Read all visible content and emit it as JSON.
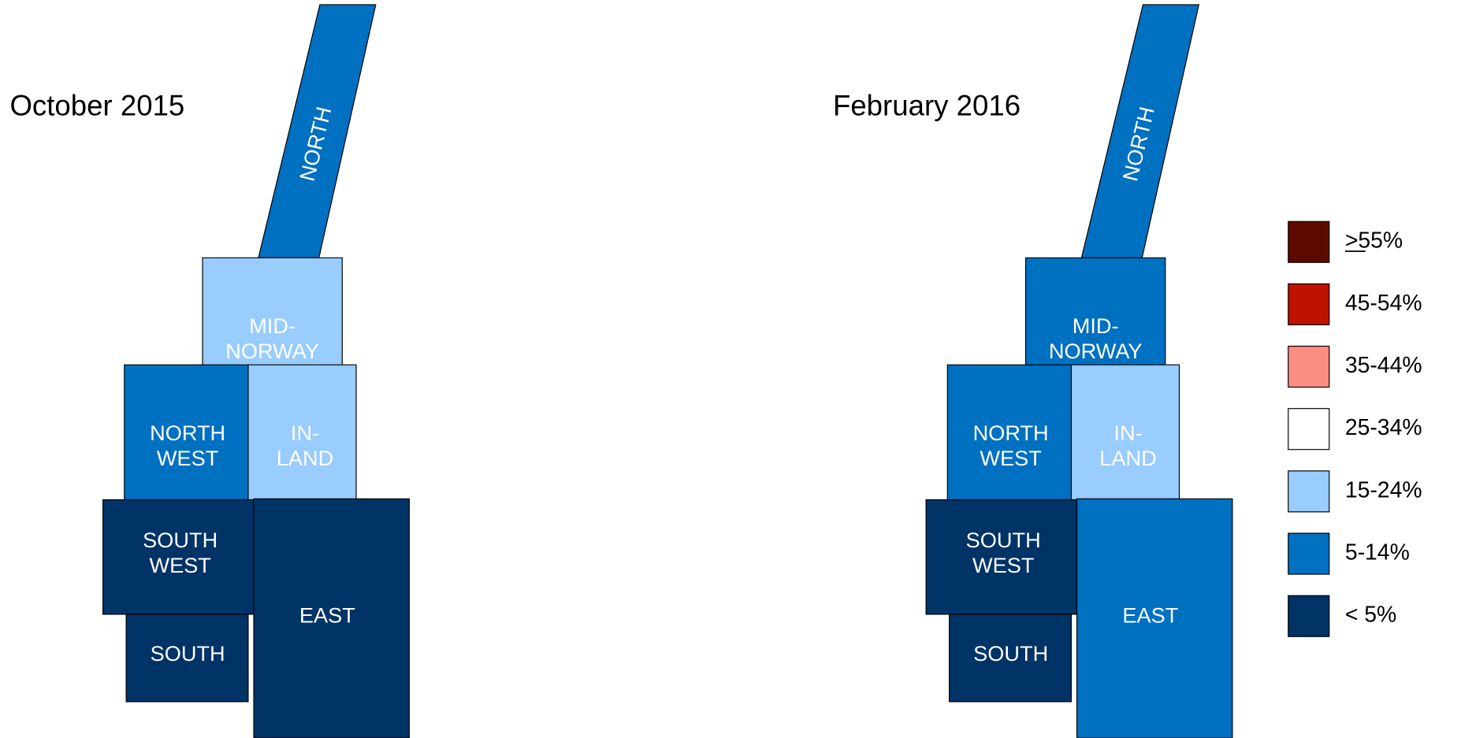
{
  "maps": [
    {
      "title": "October 2015",
      "regions": [
        {
          "label": [
            "NORTH"
          ],
          "color": "#0070c0"
        },
        {
          "label": [
            "MID-",
            "NORWAY"
          ],
          "color": "#99ccff"
        },
        {
          "label": [
            "NORTH",
            "WEST"
          ],
          "color": "#0070c0"
        },
        {
          "label": [
            "IN-",
            "LAND"
          ],
          "color": "#99ccff"
        },
        {
          "label": [
            "SOUTH",
            "WEST"
          ],
          "color": "#003366"
        },
        {
          "label": [
            "EAST"
          ],
          "color": "#003366"
        },
        {
          "label": [
            "SOUTH"
          ],
          "color": "#003366"
        }
      ]
    },
    {
      "title": "February 2016",
      "regions": [
        {
          "label": [
            "NORTH"
          ],
          "color": "#0070c0"
        },
        {
          "label": [
            "MID-",
            "NORWAY"
          ],
          "color": "#0070c0"
        },
        {
          "label": [
            "NORTH",
            "WEST"
          ],
          "color": "#0070c0"
        },
        {
          "label": [
            "IN-",
            "LAND"
          ],
          "color": "#99ccff"
        },
        {
          "label": [
            "SOUTH",
            "WEST"
          ],
          "color": "#003366"
        },
        {
          "label": [
            "EAST"
          ],
          "color": "#0070c0"
        },
        {
          "label": [
            "SOUTH"
          ],
          "color": "#003366"
        }
      ]
    }
  ],
  "legend": [
    {
      "label": ">55%",
      "color": "#5c0a00"
    },
    {
      "label": "45-54%",
      "color": "#bf1300"
    },
    {
      "label": "35-44%",
      "color": "#fa8d82"
    },
    {
      "label": "25-34%",
      "color": "#ffffff"
    },
    {
      "label": "15-24%",
      "color": "#99ccff"
    },
    {
      "label": "5-14%",
      "color": "#0070c0"
    },
    {
      "label": "< 5%",
      "color": "#003366"
    }
  ]
}
